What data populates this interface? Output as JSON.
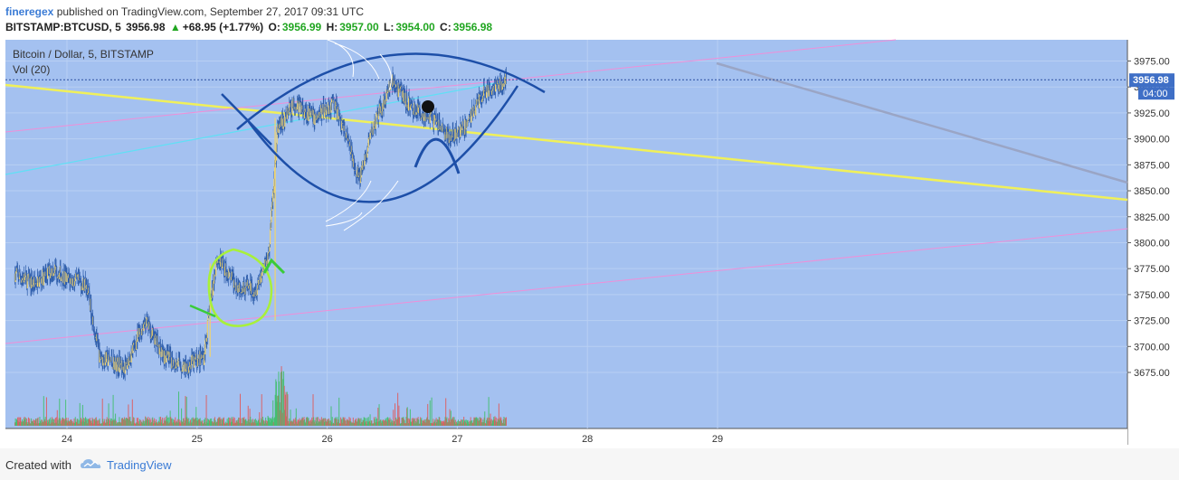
{
  "header": {
    "author": "fineregex",
    "published": "published on TradingView.com, September 27, 2017 09:31 UTC",
    "symbol": "BITSTAMP:BTCUSD, 5",
    "last": "3956.98",
    "change": "+68.95 (+1.77%)",
    "o_label": "O:",
    "o_value": "3956.99",
    "h_label": "H:",
    "h_value": "3957.00",
    "l_label": "L:",
    "l_value": "3954.00",
    "c_label": "C:",
    "c_value": "3956.98",
    "up_arrow": "triangle-up-icon"
  },
  "chart_data": {
    "type": "candlestick",
    "title": "Bitcoin / Dollar, 5, BITSTAMP",
    "volume_label": "Vol (20)",
    "x_ticks": [
      "24",
      "25",
      "26",
      "27",
      "28",
      "29"
    ],
    "y_ticks": [
      3675,
      3700,
      3725,
      3750,
      3775,
      3800,
      3825,
      3850,
      3875,
      3900,
      3925,
      3950,
      3975
    ],
    "ylim": [
      3650,
      4000
    ],
    "last_price": "3956.98",
    "countdown": "04:00",
    "price_path": [
      {
        "day": 23.6,
        "price": 3770
      },
      {
        "day": 23.75,
        "price": 3760
      },
      {
        "day": 23.9,
        "price": 3775
      },
      {
        "day": 24.0,
        "price": 3765
      },
      {
        "day": 24.15,
        "price": 3760
      },
      {
        "day": 24.25,
        "price": 3690
      },
      {
        "day": 24.45,
        "price": 3680
      },
      {
        "day": 24.6,
        "price": 3725
      },
      {
        "day": 24.75,
        "price": 3690
      },
      {
        "day": 24.9,
        "price": 3680
      },
      {
        "day": 25.05,
        "price": 3690
      },
      {
        "day": 25.15,
        "price": 3785
      },
      {
        "day": 25.3,
        "price": 3760
      },
      {
        "day": 25.45,
        "price": 3755
      },
      {
        "day": 25.55,
        "price": 3790
      },
      {
        "day": 25.62,
        "price": 3910
      },
      {
        "day": 25.75,
        "price": 3935
      },
      {
        "day": 25.9,
        "price": 3920
      },
      {
        "day": 26.05,
        "price": 3935
      },
      {
        "day": 26.15,
        "price": 3900
      },
      {
        "day": 26.25,
        "price": 3860
      },
      {
        "day": 26.35,
        "price": 3910
      },
      {
        "day": 26.5,
        "price": 3955
      },
      {
        "day": 26.65,
        "price": 3930
      },
      {
        "day": 26.8,
        "price": 3920
      },
      {
        "day": 26.95,
        "price": 3900
      },
      {
        "day": 27.05,
        "price": 3910
      },
      {
        "day": 27.2,
        "price": 3945
      },
      {
        "day": 27.38,
        "price": 3957
      }
    ]
  },
  "footer": {
    "created": "Created with",
    "brand": "TradingView"
  }
}
